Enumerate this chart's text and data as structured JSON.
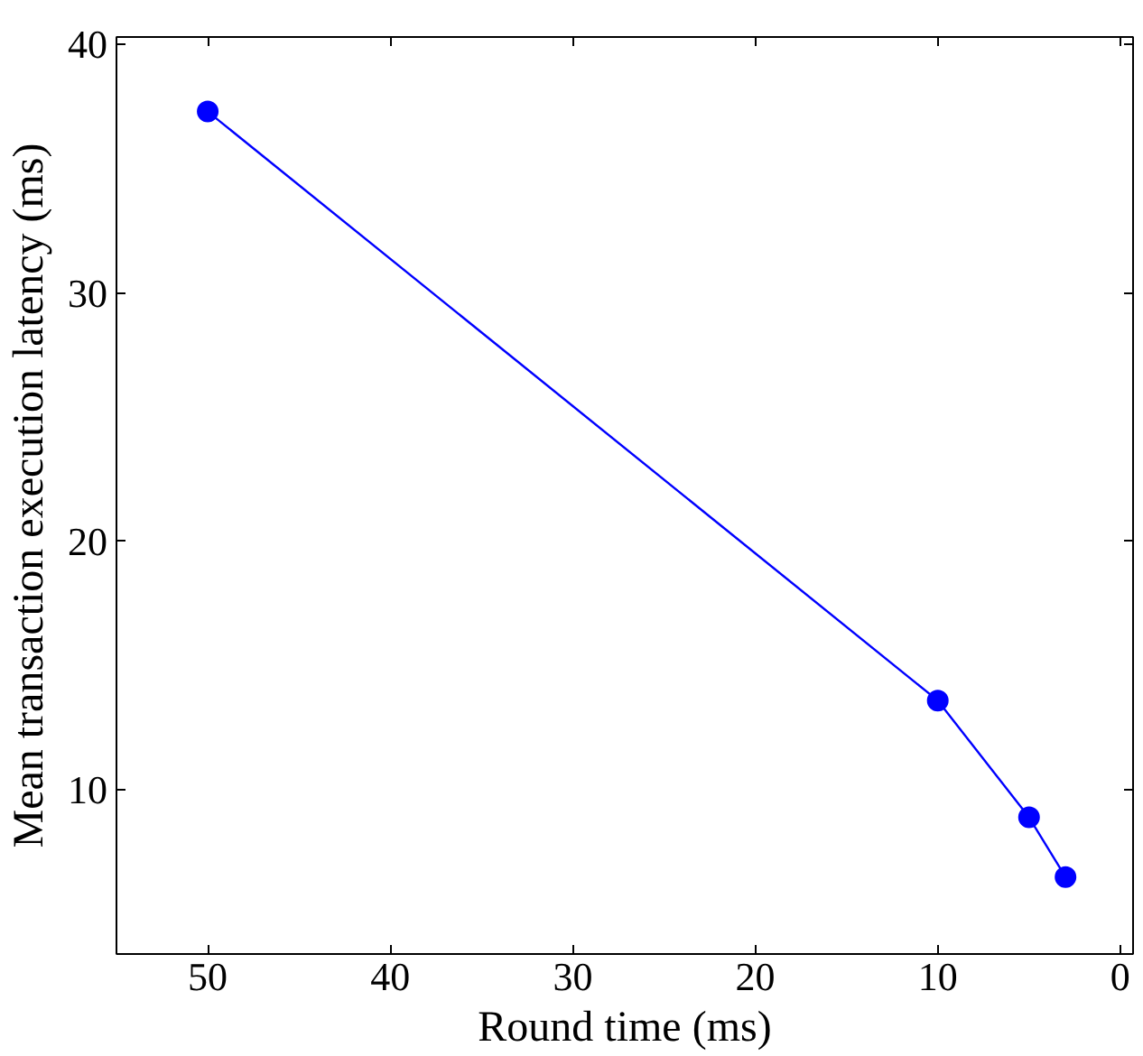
{
  "chart_data": {
    "type": "line",
    "xlabel": "Round time (ms)",
    "ylabel": "Mean transaction execution latency (ms)",
    "x": [
      50,
      10,
      5,
      3
    ],
    "series": [
      {
        "color": "#0000ff",
        "values": [
          37.3,
          13.6,
          8.9,
          6.5
        ]
      }
    ],
    "xlim": [
      55,
      -0.7
    ],
    "xticks": [
      50,
      40,
      30,
      20,
      10,
      0
    ],
    "ylim": [
      3.4,
      40.3
    ],
    "yticks": [
      10,
      20,
      30,
      40
    ],
    "marker": "circle",
    "line_style": "solid"
  }
}
